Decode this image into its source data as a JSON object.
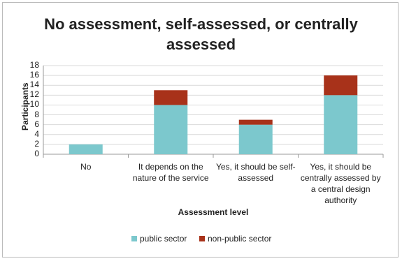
{
  "chart_data": {
    "type": "stacked-bar",
    "title": "No assessment, self-assessed, or centrally assessed",
    "x_label": "Assessment level",
    "y_label": "Participants",
    "categories": [
      "No",
      "It depends on the nature of the service",
      "Yes, it should be self-assessed",
      "Yes, it should be centrally assessed by a central design authority"
    ],
    "series": [
      {
        "name": "public sector",
        "color": "#7cc8cd",
        "values": [
          2,
          10,
          6,
          12
        ]
      },
      {
        "name": "non-public sector",
        "color": "#a8321a",
        "values": [
          0,
          3,
          1,
          4
        ]
      }
    ],
    "ylim": [
      0,
      18
    ],
    "yticks": [
      0,
      2,
      4,
      6,
      8,
      10,
      12,
      14,
      16,
      18
    ],
    "grid": true,
    "legend": "bottom"
  }
}
